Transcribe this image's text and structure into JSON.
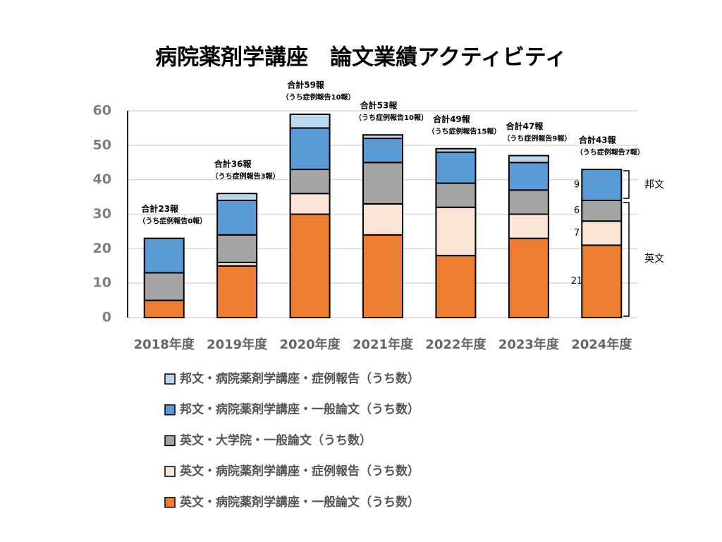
{
  "chart_data": {
    "type": "stacked_bar",
    "title": "病院薬剤学講座　論文業績アクティビティ",
    "categories": [
      "2018年度",
      "2019年度",
      "2020年度",
      "2021年度",
      "2022年度",
      "2023年度",
      "2024年度"
    ],
    "series": [
      {
        "name": "英文・病院薬剤学講座・一般論文（うち数）",
        "color": "#ED7D31",
        "values": [
          5,
          15,
          30,
          24,
          18,
          23,
          21
        ]
      },
      {
        "name": "英文・病院薬剤学講座・症例報告（うち数）",
        "color": "#FBE5D6",
        "values": [
          0,
          1,
          6,
          9,
          14,
          7,
          7
        ]
      },
      {
        "name": "英文・大学院・一般論文（うち数）",
        "color": "#A5A5A5",
        "values": [
          8,
          8,
          7,
          12,
          7,
          7,
          6
        ]
      },
      {
        "name": "邦文・病院薬剤学講座・一般論文（うち数）",
        "color": "#5B9BD5",
        "values": [
          10,
          10,
          12,
          7,
          9,
          8,
          9
        ]
      },
      {
        "name": "邦文・病院薬剤学講座・症例報告（うち数）",
        "color": "#BDD7EE",
        "values": [
          0,
          2,
          4,
          1,
          1,
          2,
          0
        ]
      }
    ],
    "total_labels": [
      "合計23報",
      "合計36報",
      "合計59報",
      "合計53報",
      "合計49報",
      "合計47報",
      "合計43報"
    ],
    "case_labels": [
      "（うち症例報告0報）",
      "（うち症例報告3報）",
      "（うち症例報告10報）",
      "（うち症例報告10報）",
      "（うち症例報告15報）",
      "（うち症例報告9報）",
      "（うち症例報告7報）"
    ],
    "group_labels": [
      "邦文",
      "英文"
    ],
    "ylim": [
      0,
      60
    ],
    "yticks": [
      0,
      10,
      20,
      30,
      40,
      50,
      60
    ],
    "grid": true
  }
}
